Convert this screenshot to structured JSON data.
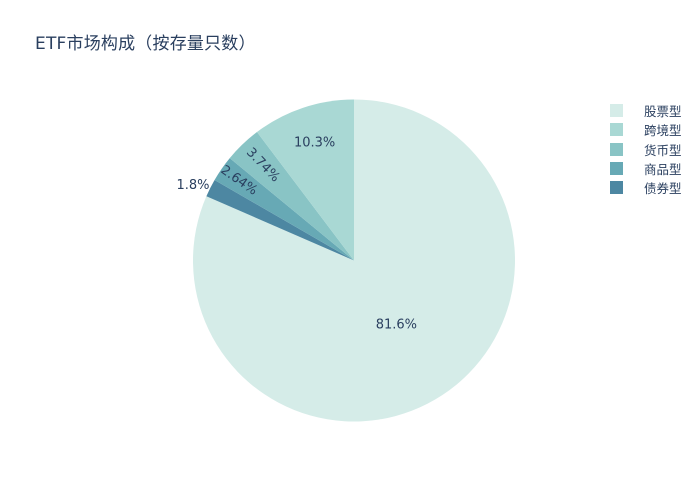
{
  "title": "ETF市场构成（按存量只数）",
  "chart_data": {
    "type": "pie",
    "title": "ETF市场构成（按存量只数）",
    "legend_position": "right",
    "direction": "counterclockwise",
    "rotation": 0,
    "sort": "descending",
    "background": "#ffffff",
    "label_color": "#2a3f5f",
    "slices": [
      {
        "label": "股票型",
        "value": 81.6,
        "pct_label": "81.6%",
        "color": "#d5ece8",
        "label_pos": "inside",
        "label_r": 0.48,
        "label_rot": 0,
        "label_dy": 0
      },
      {
        "label": "跨境型",
        "value": 10.3,
        "pct_label": "10.3%",
        "color": "#a9d8d4",
        "label_pos": "inside",
        "label_r": 0.77,
        "label_rot": 0,
        "label_dy": 0
      },
      {
        "label": "货币型",
        "value": 3.74,
        "pct_label": "3.74%",
        "color": "#89c4c5",
        "label_pos": "inside",
        "label_r": 0.82,
        "label_rot": 46,
        "label_dy": 0
      },
      {
        "label": "商品型",
        "value": 2.64,
        "pct_label": "2.64%",
        "color": "#67a9b5",
        "label_pos": "inside",
        "label_r": 0.87,
        "label_rot": 35,
        "label_dy": 0
      },
      {
        "label": "债券型",
        "value": 1.8,
        "pct_label": "1.8%",
        "color": "#4d87a2",
        "label_pos": "outside",
        "label_r": 1.12,
        "label_rot": 0,
        "label_dy": 6
      }
    ]
  }
}
